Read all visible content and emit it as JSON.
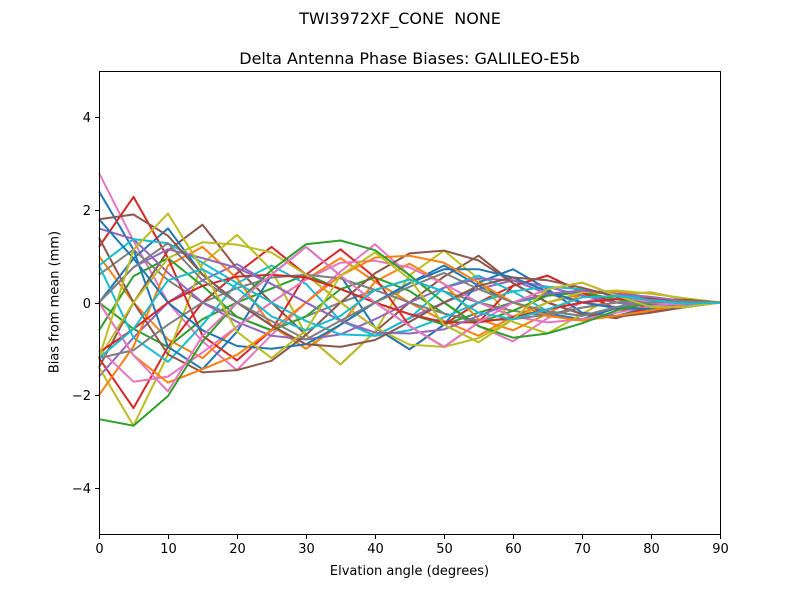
{
  "figure": {
    "suptitle": "TWI3972XF_CONE  NONE",
    "background": "#ffffff"
  },
  "chart_data": {
    "type": "line",
    "title": "Delta Antenna Phase Biases: GALILEO-E5b",
    "xlabel": "Elvation angle (degrees)",
    "ylabel": "Bias from mean (mm)",
    "xlim": [
      0,
      90
    ],
    "ylim": [
      -5,
      5
    ],
    "xticks": [
      0,
      10,
      20,
      30,
      40,
      50,
      60,
      70,
      80,
      90
    ],
    "yticks": [
      -4,
      -2,
      0,
      2,
      4
    ],
    "grid": false,
    "legend": "none",
    "line_width": 2,
    "x": [
      0,
      5,
      10,
      15,
      20,
      25,
      30,
      35,
      40,
      45,
      50,
      55,
      60,
      65,
      70,
      75,
      80,
      85,
      90
    ],
    "series": [
      {
        "color": "#e377c2",
        "values": [
          2.8,
          1.33,
          0.0,
          -0.84,
          -1.46,
          -0.7,
          0.0,
          0.67,
          1.26,
          0.59,
          0.0,
          -0.51,
          -0.84,
          -0.34,
          0.0,
          0.17,
          0.22,
          0.06,
          0.0
        ]
      },
      {
        "color": "#ff7f0e",
        "values": [
          1.0,
          0.0,
          -0.8,
          -1.2,
          -0.52,
          0.0,
          0.5,
          0.96,
          0.45,
          0.0,
          -0.4,
          -0.72,
          -0.3,
          0.0,
          0.18,
          0.24,
          0.08,
          0.0,
          0.0
        ]
      },
      {
        "color": "#2ca02c",
        "values": [
          0.0,
          -0.57,
          -0.96,
          -0.36,
          0.0,
          0.3,
          0.6,
          0.29,
          0.0,
          -0.25,
          -0.48,
          -0.22,
          0.0,
          0.15,
          0.22,
          0.07,
          0.0,
          -0.03,
          0.0
        ]
      },
      {
        "color": "#d62728",
        "values": [
          -1.2,
          -2.28,
          -0.96,
          0.0,
          0.63,
          1.2,
          0.6,
          0.0,
          -0.54,
          -1.01,
          -0.48,
          0.0,
          0.36,
          0.58,
          0.22,
          0.0,
          -0.1,
          -0.1,
          0.0
        ]
      },
      {
        "color": "#9467bd",
        "values": [
          -1.6,
          -0.76,
          0.0,
          0.48,
          0.83,
          0.4,
          0.0,
          -0.39,
          -0.72,
          -0.34,
          0.0,
          0.29,
          0.48,
          0.19,
          0.0,
          -0.1,
          -0.13,
          -0.03,
          0.0
        ]
      },
      {
        "color": "#8c564b",
        "values": [
          -1.4,
          0.0,
          1.12,
          1.68,
          0.73,
          0.0,
          -0.7,
          -1.34,
          -0.63,
          0.0,
          0.56,
          1.01,
          0.42,
          0.0,
          -0.25,
          -0.34,
          -0.11,
          0.0,
          0.0
        ]
      },
      {
        "color": "#1f77b4",
        "values": [
          0.0,
          0.95,
          1.6,
          0.6,
          0.0,
          -0.5,
          -1.0,
          -0.48,
          0.0,
          0.42,
          0.8,
          0.36,
          0.0,
          -0.24,
          -0.36,
          -0.12,
          0.0,
          0.04,
          0.0
        ]
      },
      {
        "color": "#7f7f7f",
        "values": [
          0.6,
          1.14,
          0.48,
          0.0,
          -0.31,
          -0.6,
          -0.3,
          0.0,
          0.27,
          0.5,
          0.24,
          0.0,
          -0.18,
          -0.29,
          -0.11,
          0.0,
          0.05,
          0.05,
          0.0
        ]
      },
      {
        "color": "#bcbd22",
        "values": [
          -1.4,
          -2.66,
          -1.12,
          0.84,
          1.46,
          0.7,
          -0.7,
          -1.34,
          -0.63,
          0.59,
          1.12,
          0.51,
          -0.42,
          -0.67,
          -0.25,
          0.17,
          0.22,
          0.06,
          0.0
        ]
      },
      {
        "color": "#17becf",
        "values": [
          0.8,
          -0.76,
          -1.28,
          -0.48,
          0.42,
          0.8,
          0.4,
          -0.39,
          -0.72,
          -0.34,
          0.32,
          0.58,
          0.24,
          -0.19,
          -0.29,
          -0.1,
          0.07,
          0.06,
          0.0
        ]
      },
      {
        "color": "#1f77b4",
        "values": [
          2.4,
          1.14,
          -0.96,
          -1.44,
          -0.63,
          0.6,
          1.2,
          0.58,
          -0.54,
          -1.01,
          -0.48,
          0.43,
          0.72,
          0.29,
          -0.22,
          -0.29,
          -0.1,
          0.05,
          0.0
        ]
      },
      {
        "color": "#ff7f0e",
        "values": [
          -2.0,
          -0.95,
          0.8,
          1.2,
          0.52,
          -0.5,
          -1.0,
          -0.48,
          0.45,
          0.84,
          0.4,
          -0.36,
          -0.6,
          -0.24,
          0.18,
          0.24,
          0.08,
          -0.04,
          0.0
        ]
      },
      {
        "color": "#2ca02c",
        "values": [
          -0.6,
          0.57,
          0.96,
          0.36,
          -0.31,
          -0.6,
          -0.3,
          0.29,
          0.54,
          0.25,
          -0.24,
          -0.43,
          -0.18,
          0.15,
          0.22,
          0.07,
          -0.05,
          -0.05,
          0.0
        ]
      },
      {
        "color": "#d62728",
        "values": [
          1.2,
          2.28,
          0.96,
          -0.72,
          -1.25,
          -0.6,
          0.6,
          1.15,
          0.54,
          -0.51,
          -0.96,
          -0.43,
          0.36,
          0.58,
          0.22,
          -0.15,
          -0.19,
          -0.05,
          0.0
        ]
      },
      {
        "color": "#9467bd",
        "values": [
          1.6,
          1.37,
          0.64,
          0.0,
          -0.42,
          -0.72,
          -0.8,
          -0.69,
          -0.36,
          0.0,
          0.32,
          0.52,
          0.48,
          0.34,
          0.15,
          0.0,
          -0.07,
          -0.05,
          0.0
        ]
      },
      {
        "color": "#8c564b",
        "values": [
          1.4,
          0.0,
          -1.12,
          -1.51,
          -1.46,
          -1.26,
          -0.7,
          0.0,
          0.63,
          1.06,
          1.12,
          0.91,
          0.42,
          0.0,
          -0.25,
          -0.31,
          -0.22,
          -0.1,
          0.0
        ]
      },
      {
        "color": "#e377c2",
        "values": [
          -1.0,
          -1.71,
          -1.6,
          -1.08,
          -0.52,
          0.0,
          0.5,
          0.86,
          0.9,
          0.76,
          0.4,
          0.0,
          -0.3,
          -0.43,
          -0.36,
          -0.22,
          -0.08,
          0.0,
          0.0
        ]
      },
      {
        "color": "#7f7f7f",
        "values": [
          -1.2,
          -1.03,
          -0.48,
          0.0,
          0.31,
          0.54,
          0.6,
          0.52,
          0.27,
          0.0,
          -0.24,
          -0.39,
          -0.36,
          -0.26,
          -0.11,
          0.0,
          0.05,
          0.05,
          0.0
        ]
      },
      {
        "color": "#bcbd22",
        "values": [
          -1.2,
          0.0,
          0.96,
          1.3,
          1.25,
          1.08,
          0.6,
          0.0,
          -0.54,
          -0.91,
          -0.96,
          -0.77,
          -0.36,
          0.0,
          0.22,
          0.26,
          0.19,
          0.09,
          0.0
        ]
      },
      {
        "color": "#17becf",
        "values": [
          0.8,
          1.37,
          1.28,
          0.86,
          0.42,
          0.0,
          -0.4,
          -0.69,
          -0.72,
          -0.6,
          -0.32,
          0.0,
          0.24,
          0.34,
          0.29,
          0.17,
          0.07,
          0.0,
          0.0
        ]
      },
      {
        "color": "#1f77b4",
        "values": [
          1.8,
          0.95,
          0.0,
          -0.6,
          -0.94,
          -1.0,
          -0.9,
          -0.48,
          0.0,
          0.42,
          0.72,
          0.72,
          0.54,
          0.24,
          0.0,
          -0.12,
          -0.14,
          -0.08,
          0.0
        ]
      },
      {
        "color": "#ff7f0e",
        "values": [
          0.0,
          -1.14,
          -1.73,
          -1.44,
          -1.13,
          -0.6,
          0.0,
          0.58,
          0.97,
          1.01,
          0.86,
          0.43,
          0.0,
          -0.29,
          -0.39,
          -0.29,
          -0.17,
          -0.05,
          0.0
        ]
      },
      {
        "color": "#2ca02c",
        "values": [
          -2.52,
          -2.66,
          -2.02,
          -0.84,
          0.0,
          0.7,
          1.26,
          1.34,
          1.13,
          0.59,
          0.0,
          -0.51,
          -0.76,
          -0.67,
          -0.45,
          -0.17,
          0.0,
          0.06,
          0.0
        ]
      },
      {
        "color": "#d62728",
        "values": [
          -1.08,
          -0.57,
          0.0,
          0.36,
          0.56,
          0.6,
          0.54,
          0.29,
          0.0,
          -0.25,
          -0.43,
          -0.43,
          -0.32,
          -0.15,
          0.0,
          0.07,
          0.09,
          0.05,
          0.0
        ]
      },
      {
        "color": "#9467bd",
        "values": [
          0.0,
          0.76,
          1.15,
          0.96,
          0.75,
          0.4,
          0.0,
          -0.39,
          -0.65,
          -0.67,
          -0.58,
          -0.29,
          0.0,
          0.19,
          0.26,
          0.19,
          0.12,
          0.03,
          0.0
        ]
      },
      {
        "color": "#8c564b",
        "values": [
          1.8,
          1.9,
          1.44,
          0.6,
          0.0,
          -0.5,
          -0.9,
          -0.96,
          -0.81,
          -0.42,
          0.0,
          0.36,
          0.54,
          0.48,
          0.32,
          0.12,
          0.0,
          -0.04,
          0.0
        ]
      },
      {
        "color": "#e377c2",
        "values": [
          0.0,
          -1.14,
          -1.92,
          -0.72,
          0.0,
          0.6,
          1.2,
          0.58,
          0.0,
          -0.51,
          -0.96,
          -0.43,
          0.0,
          0.29,
          0.43,
          0.15,
          0.0,
          -0.05,
          0.0
        ]
      },
      {
        "color": "#7f7f7f",
        "values": [
          0.0,
          0.76,
          1.28,
          0.48,
          0.0,
          -0.4,
          -0.8,
          -0.39,
          0.0,
          0.34,
          0.64,
          0.29,
          0.0,
          -0.19,
          -0.29,
          -0.1,
          0.0,
          0.03,
          0.0
        ]
      },
      {
        "color": "#bcbd22",
        "values": [
          -1.2,
          1.14,
          1.92,
          0.72,
          -0.63,
          -1.2,
          -0.6,
          0.58,
          1.08,
          0.51,
          -0.48,
          -0.86,
          -0.36,
          0.29,
          0.43,
          0.15,
          -0.1,
          -0.1,
          0.0
        ]
      },
      {
        "color": "#17becf",
        "values": [
          -1.2,
          -0.57,
          0.48,
          0.72,
          0.31,
          -0.3,
          -0.6,
          -0.29,
          0.27,
          0.5,
          0.24,
          -0.22,
          -0.36,
          -0.15,
          0.11,
          0.14,
          0.05,
          -0.03,
          0.0
        ]
      }
    ]
  }
}
